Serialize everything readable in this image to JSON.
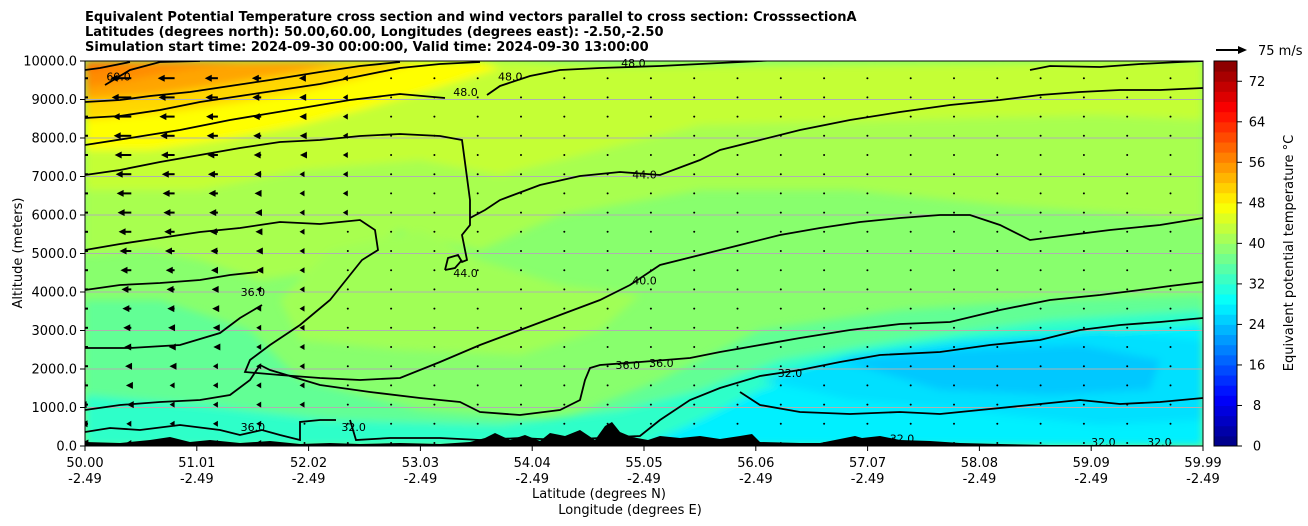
{
  "chart_data": {
    "type": "contour",
    "title_lines": [
      "Equivalent Potential Temperature cross section and wind vectors parallel to cross section: CrosssectionA",
      "Latitudes (degrees north): 50.00,60.00, Longitudes (degrees east): -2.50,-2.50",
      "Simulation start time: 2024-09-30 00:00:00, Valid time: 2024-09-30 13:00:00"
    ],
    "xlabel_lat": "Latitude (degrees N)",
    "xlabel_lon": "Longitude (degrees E)",
    "ylabel": "Altitude (meters)",
    "x_range": [
      50.0,
      59.99
    ],
    "y_range": [
      0,
      10000
    ],
    "x_tick_lats": [
      "50.00",
      "51.01",
      "52.02",
      "53.03",
      "54.04",
      "55.05",
      "56.06",
      "57.07",
      "58.08",
      "59.09",
      "59.99"
    ],
    "x_tick_lons": [
      "-2.49",
      "-2.49",
      "-2.49",
      "-2.49",
      "-2.49",
      "-2.49",
      "-2.49",
      "-2.49",
      "-2.49",
      "-2.49",
      "-2.49"
    ],
    "y_ticks": [
      0,
      1000,
      2000,
      3000,
      4000,
      5000,
      6000,
      7000,
      8000,
      9000,
      10000
    ],
    "y_tick_labels": [
      "0.0",
      "1000.0",
      "2000.0",
      "3000.0",
      "4000.0",
      "5000.0",
      "6000.0",
      "7000.0",
      "8000.0",
      "9000.0",
      "10000.0"
    ],
    "grid": "horizontal",
    "colorbar": {
      "label": "Equivalent potential temperature °C",
      "min": 0,
      "max": 76,
      "step": 2,
      "ticks": [
        0,
        8,
        16,
        24,
        32,
        40,
        48,
        56,
        64,
        72
      ],
      "tick_labels": [
        "0",
        "8",
        "16",
        "24",
        "32",
        "40",
        "48",
        "56",
        "64",
        "72"
      ]
    },
    "wind_reference": {
      "label": "75 m/s",
      "speed": 75
    },
    "contour_levels": [
      32,
      36,
      40,
      44,
      48,
      60
    ],
    "contour_labels": [
      {
        "text": "60.0",
        "lat": 50.3,
        "alt": 9600
      },
      {
        "text": "48.0",
        "lat": 53.4,
        "alt": 9200
      },
      {
        "text": "48.0",
        "lat": 53.8,
        "alt": 9600
      },
      {
        "text": "48.0",
        "lat": 54.9,
        "alt": 9950
      },
      {
        "text": "44.0",
        "lat": 55.0,
        "alt": 7050
      },
      {
        "text": "44.0",
        "lat": 53.4,
        "alt": 4500
      },
      {
        "text": "40.0",
        "lat": 55.0,
        "alt": 4300
      },
      {
        "text": "36.0",
        "lat": 51.5,
        "alt": 4000
      },
      {
        "text": "36.0",
        "lat": 54.85,
        "alt": 2100
      },
      {
        "text": "36.0",
        "lat": 55.15,
        "alt": 2150
      },
      {
        "text": "32.0",
        "lat": 56.3,
        "alt": 1900
      },
      {
        "text": "36.0",
        "lat": 51.5,
        "alt": 500
      },
      {
        "text": "32.0",
        "lat": 52.4,
        "alt": 500
      },
      {
        "text": "32.0",
        "lat": 59.1,
        "alt": 100
      },
      {
        "text": "32.0",
        "lat": 59.6,
        "alt": 100
      },
      {
        "text": "32.0",
        "lat": 57.3,
        "alt": 200
      }
    ]
  }
}
